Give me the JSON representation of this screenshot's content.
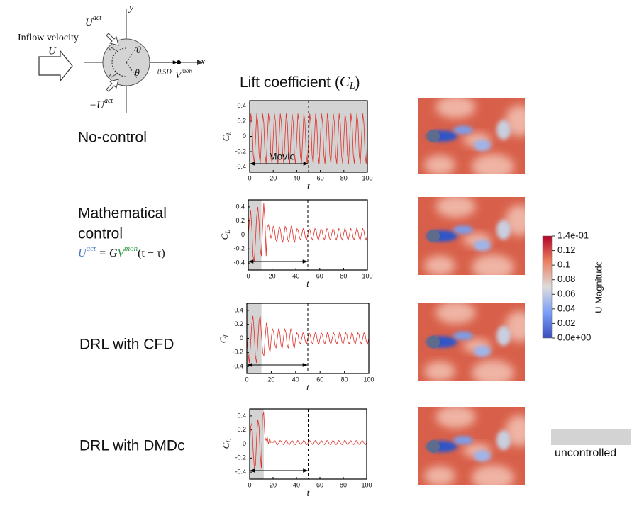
{
  "diagram": {
    "inflow_label": "Inflow velocity",
    "U": "U",
    "U_act": [
      "U",
      "act"
    ],
    "neg_U_act": [
      "−U",
      "act"
    ],
    "theta": [
      "θ",
      "θ"
    ],
    "offset": "0.5D",
    "V_mon": [
      "V",
      "mon"
    ],
    "x_axis": "x",
    "y_axis": "y"
  },
  "heading": [
    "Lift coefficient (",
    "C",
    "L",
    ")"
  ],
  "row_labels": [
    "No-control",
    "Mathematical",
    "control",
    "DRL with CFD",
    "DRL with DMDc"
  ],
  "formula": [
    "U",
    "act",
    " = G",
    "V",
    "mon",
    "(t − τ)"
  ],
  "chart_data": [
    {
      "type": "line",
      "xlabel": "t",
      "ylabel": [
        "C",
        "L"
      ],
      "annotation": "Movie",
      "color": "#e0302a",
      "shade_color": "#d3d3d3",
      "shade": [
        0,
        100
      ],
      "vline": 50,
      "arrow": [
        0,
        50
      ],
      "xlim": [
        0,
        100
      ],
      "ylim": [
        -0.47,
        0.47
      ],
      "xticks": [
        0,
        20,
        40,
        60,
        80,
        100
      ],
      "yticks": [
        -0.4,
        -0.2,
        0,
        0.2,
        0.4
      ],
      "x": [
        0,
        1,
        2,
        3,
        4,
        5,
        6,
        7,
        8,
        9,
        10,
        11,
        12,
        13,
        14,
        15,
        16,
        17,
        18,
        19,
        20,
        21,
        22,
        23,
        24,
        25,
        26,
        27,
        28,
        29,
        30,
        31,
        32,
        33,
        34,
        35,
        36,
        37,
        38,
        39,
        40,
        41,
        42,
        43,
        44,
        45,
        46,
        47,
        48,
        49,
        50,
        51,
        52,
        53,
        54,
        55,
        56,
        57,
        58,
        59,
        60,
        61,
        62,
        63,
        64,
        65,
        66,
        67,
        68,
        69,
        70,
        71,
        72,
        73,
        74,
        75,
        76,
        77,
        78,
        79,
        80,
        81,
        82,
        83,
        84,
        85,
        86,
        87,
        88,
        89,
        90,
        91,
        92,
        93,
        94,
        95,
        96,
        97,
        98,
        99,
        100
      ],
      "values": [
        -0.03,
        0.3,
        0.18,
        -0.24,
        -0.36,
        -0.03,
        0.3,
        0.18,
        -0.24,
        -0.36,
        -0.03,
        0.3,
        0.18,
        -0.24,
        -0.36,
        -0.03,
        0.3,
        0.18,
        -0.24,
        -0.36,
        -0.03,
        0.3,
        0.18,
        -0.24,
        -0.36,
        -0.03,
        0.3,
        0.18,
        -0.24,
        -0.36,
        -0.03,
        0.3,
        0.18,
        -0.24,
        -0.36,
        -0.03,
        0.3,
        0.18,
        -0.24,
        -0.36,
        -0.03,
        0.3,
        0.18,
        -0.24,
        -0.36,
        -0.03,
        0.3,
        0.18,
        -0.24,
        -0.36,
        -0.03,
        0.3,
        0.18,
        -0.24,
        -0.36,
        -0.03,
        0.3,
        0.18,
        -0.24,
        -0.36,
        -0.03,
        0.3,
        0.18,
        -0.24,
        -0.36,
        -0.03,
        0.3,
        0.18,
        -0.24,
        -0.36,
        -0.03,
        0.3,
        0.18,
        -0.24,
        -0.36,
        -0.03,
        0.3,
        0.18,
        -0.24,
        -0.36,
        -0.03,
        0.3,
        0.18,
        -0.24,
        -0.36,
        -0.03,
        0.3,
        0.18,
        -0.24,
        -0.36,
        -0.03,
        0.3,
        0.18,
        -0.24,
        -0.36,
        -0.03,
        0.3,
        0.18,
        -0.24,
        -0.36,
        -0.03
      ]
    },
    {
      "type": "line",
      "xlabel": "t",
      "ylabel": [
        "C",
        "L"
      ],
      "color": "#e0302a",
      "shade_color": "#d3d3d3",
      "shade": [
        0,
        11
      ],
      "vline": 50,
      "arrow": [
        0,
        50
      ],
      "xlim": [
        0,
        100
      ],
      "ylim": [
        -0.5,
        0.5
      ],
      "xticks": [
        0,
        20,
        40,
        60,
        80,
        100
      ],
      "yticks": [
        -0.4,
        -0.2,
        0,
        0.2,
        0.4
      ],
      "x": [
        0,
        1,
        2,
        3,
        4,
        5,
        6,
        7,
        8,
        9,
        10,
        11,
        12,
        13,
        14,
        15,
        16,
        17,
        18,
        19,
        20,
        21,
        22,
        23,
        24,
        25,
        26,
        27,
        28,
        29,
        30,
        31,
        32,
        33,
        34,
        35,
        36,
        37,
        38,
        39,
        40,
        41,
        42,
        43,
        44,
        45,
        46,
        47,
        48,
        49,
        50,
        51,
        52,
        53,
        54,
        55,
        56,
        57,
        58,
        59,
        60,
        61,
        62,
        63,
        64,
        65,
        66,
        67,
        68,
        69,
        70,
        71,
        72,
        73,
        74,
        75,
        76,
        77,
        78,
        79,
        80,
        81,
        82,
        83,
        84,
        85,
        86,
        87,
        88,
        89,
        90,
        91,
        92,
        93,
        94,
        95,
        96,
        97,
        98,
        99,
        100
      ],
      "values": [
        0,
        0.2,
        0.35,
        0.1,
        -0.3,
        -0.38,
        -0.1,
        0.25,
        0.4,
        0.2,
        -0.2,
        -0.3,
        0.1,
        0.45,
        0.2,
        -0.3,
        0.1,
        0.15,
        0.05,
        -0.05,
        0.01,
        0.12,
        0.08,
        -0.06,
        -0.1,
        0.01,
        0.12,
        0.08,
        -0.06,
        -0.1,
        0.01,
        0.12,
        0.08,
        -0.06,
        -0.1,
        0.01,
        0.12,
        0.08,
        -0.06,
        -0.1,
        0.01,
        0.09,
        0.06,
        -0.04,
        -0.07,
        0.01,
        0.09,
        0.06,
        -0.04,
        -0.07,
        0.01,
        0.09,
        0.06,
        -0.04,
        -0.07,
        0.01,
        0.09,
        0.06,
        -0.04,
        -0.07,
        0.01,
        0.09,
        0.06,
        -0.04,
        -0.07,
        0.01,
        0.09,
        0.06,
        -0.04,
        -0.07,
        0.01,
        0.09,
        0.06,
        -0.04,
        -0.07,
        0.01,
        0.09,
        0.06,
        -0.04,
        -0.07,
        0.01,
        0.09,
        0.06,
        -0.04,
        -0.07,
        0.01,
        0.09,
        0.06,
        -0.04,
        -0.07,
        0.01,
        0.09,
        0.06,
        -0.04,
        -0.07,
        0.01,
        0.09,
        0.06,
        -0.04,
        -0.07,
        0.01
      ]
    },
    {
      "type": "line",
      "xlabel": "t",
      "ylabel": [
        "C",
        "L"
      ],
      "color": "#e0302a",
      "shade_color": "#d3d3d3",
      "shade": [
        0,
        12
      ],
      "vline": 50,
      "arrow": [
        0,
        50
      ],
      "xlim": [
        0,
        100
      ],
      "ylim": [
        -0.5,
        0.5
      ],
      "xticks": [
        0,
        20,
        40,
        60,
        80,
        100
      ],
      "yticks": [
        -0.4,
        -0.2,
        0,
        0.2,
        0.4
      ],
      "x": [
        0,
        1,
        2,
        3,
        4,
        5,
        6,
        7,
        8,
        9,
        10,
        11,
        12,
        13,
        14,
        15,
        16,
        17,
        18,
        19,
        20,
        21,
        22,
        23,
        24,
        25,
        26,
        27,
        28,
        29,
        30,
        31,
        32,
        33,
        34,
        35,
        36,
        37,
        38,
        39,
        40,
        41,
        42,
        43,
        44,
        45,
        46,
        47,
        48,
        49,
        50,
        51,
        52,
        53,
        54,
        55,
        56,
        57,
        58,
        59,
        60,
        61,
        62,
        63,
        64,
        65,
        66,
        67,
        68,
        69,
        70,
        71,
        72,
        73,
        74,
        75,
        76,
        77,
        78,
        79,
        80,
        81,
        82,
        83,
        84,
        85,
        86,
        87,
        88,
        89,
        90,
        91,
        92,
        93,
        94,
        95,
        96,
        97,
        98,
        99,
        100
      ],
      "values": [
        0,
        -0.2,
        -0.35,
        -0.1,
        0.2,
        0.32,
        0.1,
        -0.25,
        -0.35,
        -0.05,
        0.25,
        0.32,
        0.05,
        -0.2,
        -0.25,
        0,
        0.22,
        0.15,
        -0.12,
        -0.2,
        0,
        0.14,
        0.09,
        -0.09,
        -0.14,
        0,
        0.14,
        0.09,
        -0.09,
        -0.14,
        0,
        0.14,
        0.09,
        -0.09,
        -0.14,
        0,
        0.14,
        0.09,
        -0.09,
        -0.14,
        0,
        0.08,
        0.05,
        -0.05,
        -0.08,
        0,
        0.08,
        0.05,
        -0.05,
        -0.08,
        0,
        0.08,
        0.05,
        -0.05,
        -0.08,
        0,
        0.08,
        0.05,
        -0.05,
        -0.08,
        0,
        0.08,
        0.05,
        -0.05,
        -0.08,
        0,
        0.08,
        0.05,
        -0.05,
        -0.08,
        0,
        0.08,
        0.05,
        -0.05,
        -0.08,
        0,
        0.08,
        0.05,
        -0.05,
        -0.08,
        0,
        0.08,
        0.05,
        -0.05,
        -0.08,
        0,
        0.08,
        0.05,
        -0.05,
        -0.08,
        0,
        0.08,
        0.05,
        -0.05,
        -0.08,
        0,
        0.08,
        0.05,
        -0.05,
        -0.08,
        0
      ]
    },
    {
      "type": "line",
      "xlabel": "t",
      "ylabel": [
        "C",
        "L"
      ],
      "color": "#e0302a",
      "shade_color": "#d3d3d3",
      "shade": [
        0,
        12
      ],
      "vline": 50,
      "arrow": [
        0,
        50
      ],
      "xlim": [
        0,
        100
      ],
      "ylim": [
        -0.5,
        0.5
      ],
      "xticks": [
        0,
        20,
        40,
        60,
        80,
        100
      ],
      "yticks": [
        -0.4,
        -0.2,
        0,
        0.2,
        0.4
      ],
      "x": [
        0,
        1,
        2,
        3,
        4,
        5,
        6,
        7,
        8,
        9,
        10,
        11,
        12,
        13,
        14,
        15,
        16,
        17,
        18,
        19,
        20,
        21,
        22,
        23,
        24,
        25,
        26,
        27,
        28,
        29,
        30,
        31,
        32,
        33,
        34,
        35,
        36,
        37,
        38,
        39,
        40,
        41,
        42,
        43,
        44,
        45,
        46,
        47,
        48,
        49,
        50,
        51,
        52,
        53,
        54,
        55,
        56,
        57,
        58,
        59,
        60,
        61,
        62,
        63,
        64,
        65,
        66,
        67,
        68,
        69,
        70,
        71,
        72,
        73,
        74,
        75,
        76,
        77,
        78,
        79,
        80,
        81,
        82,
        83,
        84,
        85,
        86,
        87,
        88,
        89,
        90,
        91,
        92,
        93,
        94,
        95,
        96,
        97,
        98,
        99,
        100
      ],
      "values": [
        0,
        0.25,
        0.3,
        -0.1,
        -0.35,
        -0.3,
        0.1,
        0.35,
        0.25,
        -0.15,
        -0.35,
        0.4,
        0.45,
        0.1,
        0.05,
        0.1,
        0,
        0.08,
        0.02,
        0.04,
        0.02,
        0.05,
        0.04,
        0,
        -0.01,
        0.02,
        0.05,
        0.04,
        0,
        -0.01,
        0.02,
        0.05,
        0.04,
        0,
        -0.01,
        0.02,
        0.05,
        0.04,
        0,
        -0.01,
        0.02,
        0.05,
        0.04,
        0,
        -0.01,
        0.02,
        0.05,
        0.04,
        0,
        -0.01,
        0.02,
        0.05,
        0.04,
        0,
        -0.01,
        0.02,
        0.05,
        0.04,
        0,
        -0.01,
        0.02,
        0.05,
        0.04,
        0,
        -0.01,
        0.02,
        0.05,
        0.04,
        0,
        -0.01,
        0.02,
        0.05,
        0.04,
        0,
        -0.01,
        0.02,
        0.05,
        0.04,
        0,
        -0.01,
        0.02,
        0.05,
        0.04,
        0,
        -0.01,
        0.02,
        0.05,
        0.04,
        0,
        -0.01,
        0.02,
        0.05,
        0.04,
        0,
        -0.01,
        0.02,
        0.05,
        0.04,
        0,
        -0.01,
        0.02
      ]
    }
  ],
  "colorbar": {
    "label": "U Magnitude",
    "range": [
      0,
      0.14
    ],
    "ticks": [
      {
        "value": 0.14,
        "label": "1.4e-01"
      },
      0.12,
      0.1,
      0.08,
      0.06,
      0.04,
      0.02,
      {
        "value": 0,
        "label": "0.0e+00"
      }
    ]
  },
  "legend": {
    "label": "uncontrolled",
    "color": "#d3d3d3"
  }
}
